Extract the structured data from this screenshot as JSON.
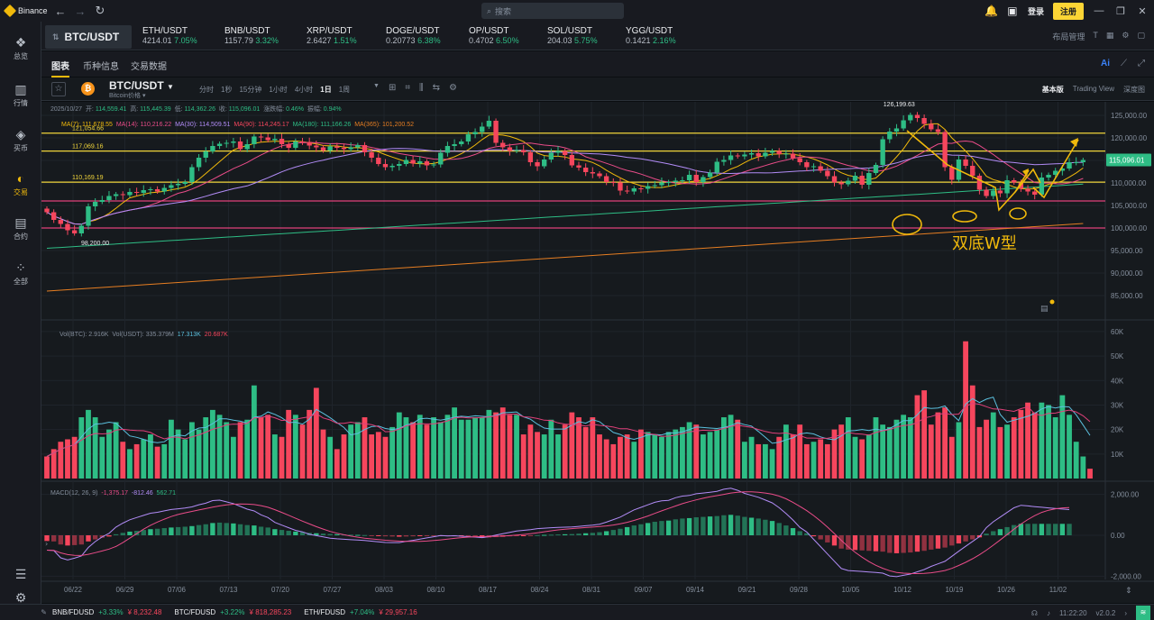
{
  "titlebar": {
    "app_name": "Binance",
    "search_placeholder": "搜索",
    "login": "登录",
    "register": "注册"
  },
  "sidebar": {
    "items": [
      {
        "label": "总览",
        "icon": "overview-icon"
      },
      {
        "label": "行情",
        "icon": "markets-icon"
      },
      {
        "label": "买币",
        "icon": "buy-crypto-icon"
      },
      {
        "label": "交易",
        "icon": "trade-icon",
        "active": true
      },
      {
        "label": "合约",
        "icon": "futures-icon"
      },
      {
        "label": "全部",
        "icon": "all-icon"
      }
    ]
  },
  "ticker": {
    "active_pair": "BTC/USDT",
    "items": [
      {
        "name": "ETH/USDT",
        "price": "4214.01",
        "change": "7.05%"
      },
      {
        "name": "BNB/USDT",
        "price": "1157.79",
        "change": "3.32%"
      },
      {
        "name": "XRP/USDT",
        "price": "2.6427",
        "change": "1.51%"
      },
      {
        "name": "DOGE/USDT",
        "price": "0.20773",
        "change": "6.38%"
      },
      {
        "name": "OP/USDT",
        "price": "0.4702",
        "change": "6.50%"
      },
      {
        "name": "SOL/USDT",
        "price": "204.03",
        "change": "5.75%"
      },
      {
        "name": "YGG/USDT",
        "price": "0.1421",
        "change": "2.16%"
      }
    ],
    "layout_label": "布局管理"
  },
  "subtabs": {
    "chart": "图表",
    "info": "币种信息",
    "trades": "交易数据"
  },
  "toolbar": {
    "symbol": "BTC/USDT",
    "subtitle": "Bitcoin价格",
    "intervals": [
      "分时",
      "1秒",
      "15分钟",
      "1小时",
      "4小时",
      "1日",
      "1周"
    ],
    "active_interval": "1日",
    "views": [
      "基本版",
      "Trading View",
      "深度图"
    ]
  },
  "overlay": {
    "date": "2025/10/27",
    "open_k": "开:",
    "open": "114,559.41",
    "high_k": "高:",
    "high": "115,445.39",
    "low_k": "低:",
    "low": "114,362.26",
    "close_k": "收:",
    "close": "115,096.01",
    "chg_k": "涨跌幅:",
    "chg": "0.46%",
    "amp_k": "振幅:",
    "amp": "0.94%",
    "ma_label": "MA(7): 111,678.55",
    "ma14": "MA(14): 110,216.22",
    "ma30": "MA(30): 114,509.51",
    "ma90": "MA(90): 114,245.17",
    "ma180": "MA(180): 111,166.26",
    "ma365": "MA(365): 101,200.52",
    "vol_btc": "Vol(BTC): 2.916K",
    "vol_usdt": "Vol(USDT): 335.379M",
    "vol_a": "17.313K",
    "vol_b": "20.687K",
    "macd": "MACD(12, 26, 9)",
    "macd_a": "-1,375.17",
    "macd_b": "-812.46",
    "macd_c": "562.71"
  },
  "annotations": {
    "lines": [
      "121,054.66",
      "117,069.16",
      "110,169.19"
    ],
    "high_label": "126,199.63",
    "low_label": "98,200.00",
    "pattern_text": "双底W型"
  },
  "chart_data": {
    "type": "candlestick",
    "x_ticks": [
      "06/22",
      "06/29",
      "07/06",
      "07/13",
      "07/20",
      "07/27",
      "08/03",
      "08/10",
      "08/17",
      "08/24",
      "08/31",
      "09/07",
      "09/14",
      "09/21",
      "09/28",
      "10/05",
      "10/12",
      "10/19",
      "10/26",
      "11/02"
    ],
    "price_ticks": [
      "125,000.00",
      "120,000.00",
      "115,000.00",
      "110,000.00",
      "105,000.00",
      "100,000.00",
      "95,000.00",
      "90,000.00",
      "85,000.00"
    ],
    "price_range": [
      80000,
      128000
    ],
    "current_price": "115,096.01",
    "volume_ticks": [
      "60K",
      "50K",
      "40K",
      "30K",
      "20K",
      "10K"
    ],
    "macd_ticks": [
      "2,000.00",
      "0.00",
      "-2,000.00"
    ],
    "key_levels": [
      121054.66,
      117069.16,
      110169.19,
      106000,
      100000
    ],
    "close_path": [
      103500,
      101800,
      100900,
      99500,
      98800,
      100500,
      104800,
      105800,
      106200,
      107100,
      107500,
      107300,
      108000,
      107800,
      108400,
      108600,
      108100,
      108900,
      109500,
      109800,
      110200,
      113500,
      115600,
      117000,
      118200,
      118700,
      118900,
      119200,
      117500,
      118600,
      120300,
      120100,
      119500,
      119800,
      118600,
      117800,
      119200,
      119100,
      118300,
      117900,
      117200,
      118100,
      117800,
      117500,
      117900,
      118400,
      116800,
      115600,
      114200,
      113500,
      113800,
      114200,
      115100,
      114300,
      114800,
      113900,
      114100,
      116700,
      118200,
      118600,
      119200,
      120800,
      121300,
      122500,
      123800,
      118900,
      117900,
      117100,
      117300,
      116800,
      114600,
      113700,
      115200,
      116700,
      117100,
      116200,
      113900,
      113400,
      112400,
      112100,
      111500,
      110200,
      110100,
      108300,
      108100,
      108800,
      108700,
      109300,
      109500,
      110100,
      110200,
      110500,
      110600,
      111800,
      110200,
      111300,
      112300,
      114700,
      115100,
      116100,
      115900,
      116300,
      116600,
      115900,
      116700,
      117100,
      116400,
      116500,
      115500,
      114600,
      113500,
      113700,
      112700,
      111500,
      110100,
      109700,
      110500,
      111600,
      109600,
      112200,
      114000,
      119700,
      121400,
      122100,
      123900,
      125100,
      124400,
      123100,
      121900,
      121300,
      113500,
      110700,
      115200,
      113800,
      111600,
      108500,
      107100,
      108300,
      107700,
      110600,
      110100,
      108700,
      108100,
      107400,
      111200,
      111800,
      112700,
      113200,
      114600,
      114600,
      115100
    ],
    "volume": [
      9,
      12,
      15,
      16,
      17,
      25,
      28,
      25,
      17,
      20,
      23,
      15,
      12,
      14,
      16,
      18,
      13,
      14,
      24,
      20,
      16,
      23,
      20,
      25,
      28,
      26,
      23,
      17,
      23,
      24,
      38,
      25,
      26,
      18,
      17,
      28,
      26,
      22,
      28,
      37,
      20,
      17,
      12,
      18,
      22,
      23,
      25,
      18,
      19,
      17,
      21,
      27,
      25,
      23,
      26,
      22,
      25,
      23,
      26,
      29,
      24,
      24,
      25,
      25,
      28,
      27,
      29,
      26,
      26,
      18,
      22,
      19,
      18,
      24,
      18,
      22,
      27,
      25,
      21,
      25,
      18,
      16,
      14,
      17,
      18,
      15,
      20,
      19,
      18,
      17,
      19,
      20,
      21,
      23,
      22,
      18,
      19,
      20,
      25,
      26,
      24,
      15,
      17,
      14,
      14,
      12,
      17,
      22,
      18,
      22,
      14,
      15,
      16,
      14,
      20,
      22,
      25,
      17,
      16,
      18,
      25,
      22,
      21,
      24,
      26,
      25,
      34,
      36,
      22,
      27,
      29,
      17,
      23,
      56,
      38,
      21,
      24,
      27,
      21,
      22,
      25,
      28,
      31,
      27,
      31,
      30,
      25,
      34,
      26,
      15,
      9,
      4
    ],
    "macd_hist": [
      -280,
      -300,
      -450,
      -500,
      -480,
      -450,
      -300,
      -200,
      -120,
      -60,
      50,
      120,
      180,
      220,
      260,
      300,
      320,
      350,
      380,
      400,
      420,
      450,
      500,
      540,
      600,
      620,
      600,
      580,
      540,
      500,
      480,
      420,
      380,
      300,
      260,
      220,
      180,
      160,
      120,
      100,
      80,
      60,
      50,
      40,
      30,
      20,
      10,
      -10,
      -30,
      -50,
      -60,
      -70,
      -60,
      -50,
      -40,
      -30,
      -20,
      -10,
      -30,
      -40,
      -60,
      -80,
      -100,
      -120,
      -110,
      -90,
      -70,
      -50,
      -30,
      -20,
      -10,
      10,
      20,
      30,
      40,
      50,
      60,
      80,
      100,
      120,
      150,
      200,
      260,
      320,
      400,
      480,
      540,
      600,
      660,
      700,
      720,
      780,
      820,
      840,
      880,
      900,
      920,
      940,
      980,
      1000,
      960,
      900,
      860,
      820,
      760,
      700,
      600,
      480,
      350,
      200,
      100,
      -50,
      -200,
      -350,
      -500,
      -650,
      -700,
      -720,
      -740,
      -760,
      -780,
      -800,
      -860,
      -880,
      -860,
      -840,
      -800,
      -760,
      -700,
      -650,
      -600,
      -500,
      -400,
      -300,
      -200,
      -100,
      80,
      200,
      300,
      400,
      500,
      560,
      560,
      560,
      560,
      560,
      560,
      560,
      560
    ]
  }
}
